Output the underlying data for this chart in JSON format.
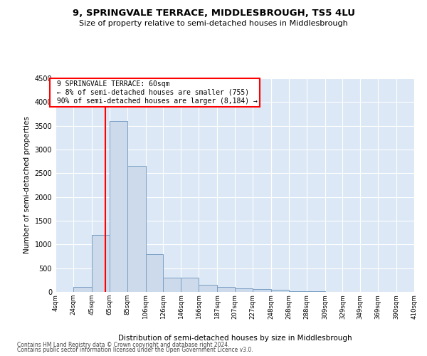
{
  "title": "9, SPRINGVALE TERRACE, MIDDLESBROUGH, TS5 4LU",
  "subtitle": "Size of property relative to semi-detached houses in Middlesbrough",
  "xlabel": "Distribution of semi-detached houses by size in Middlesbrough",
  "ylabel": "Number of semi-detached properties",
  "footnote1": "Contains HM Land Registry data © Crown copyright and database right 2024.",
  "footnote2": "Contains public sector information licensed under the Open Government Licence v3.0.",
  "property_size": 60,
  "pct_smaller": 8,
  "pct_larger": 90,
  "count_smaller": 755,
  "count_larger": 8184,
  "bar_color": "#cddaeb",
  "bar_edge_color": "#7aa0c4",
  "vline_color": "red",
  "bin_edges": [
    4,
    24,
    45,
    65,
    85,
    106,
    126,
    146,
    166,
    187,
    207,
    227,
    248,
    268,
    288,
    309,
    329,
    349,
    369,
    390,
    410
  ],
  "values": [
    0,
    100,
    1200,
    3600,
    2650,
    800,
    300,
    300,
    150,
    110,
    75,
    55,
    45,
    10,
    8,
    5,
    2,
    2,
    0,
    0
  ],
  "ylim": [
    0,
    4500
  ],
  "yticks": [
    0,
    500,
    1000,
    1500,
    2000,
    2500,
    3000,
    3500,
    4000,
    4500
  ],
  "bg_color": "#dce8f5",
  "fig_bg": "#ffffff"
}
